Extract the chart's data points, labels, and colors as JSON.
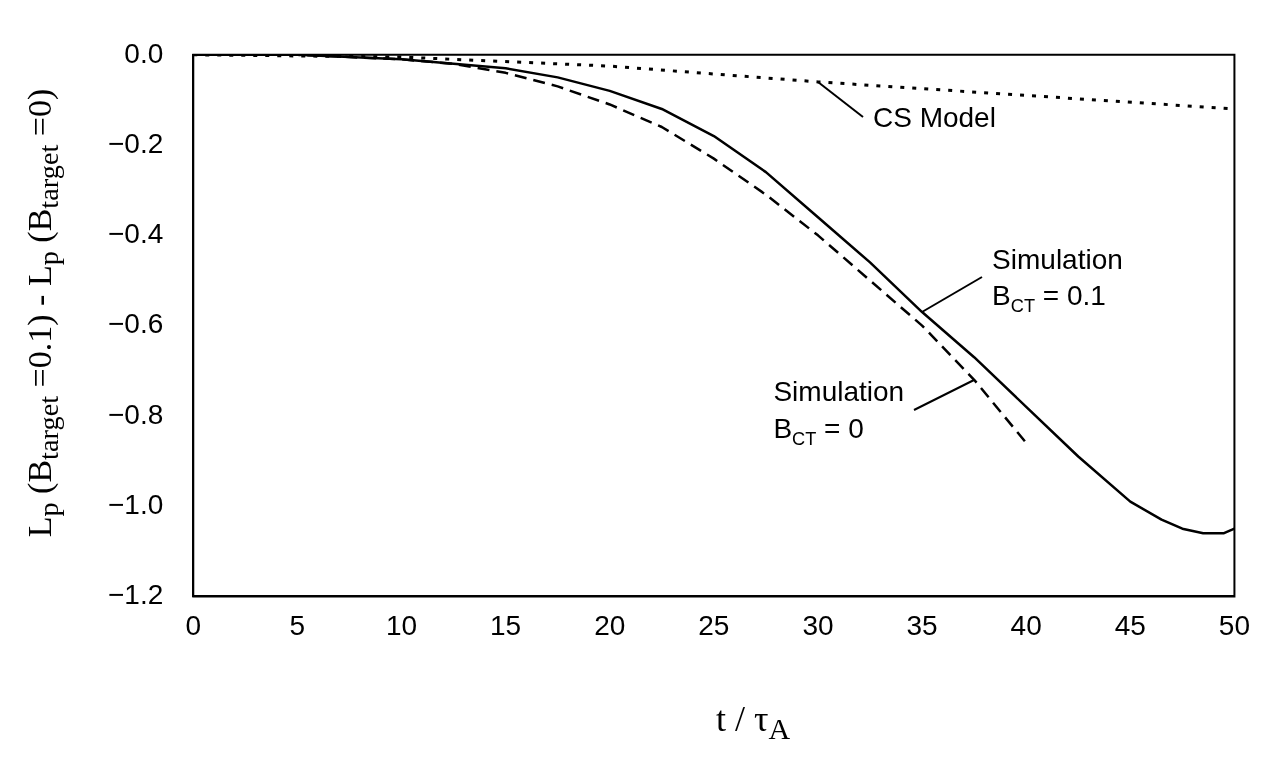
{
  "chart_data": {
    "type": "line",
    "xlabel": "t / τ$_{A}$",
    "ylabel": "L$_{p}$ (B$_{target}$ =0.1) - L$_{p}$ (B$_{target}$ =0)",
    "xlim": [
      0,
      50
    ],
    "ylim": [
      -1.2,
      0
    ],
    "xticks": [
      0,
      5,
      10,
      15,
      20,
      25,
      30,
      35,
      40,
      45,
      50
    ],
    "yticks": [
      {
        "value": 0,
        "label": "0.0"
      },
      {
        "value": -0.2,
        "label": "−0.2"
      },
      {
        "value": -0.4,
        "label": "−0.4"
      },
      {
        "value": -0.6,
        "label": "−0.6"
      },
      {
        "value": -0.8,
        "label": "−0.8"
      },
      {
        "value": -1.0,
        "label": "−1.0"
      },
      {
        "value": -1.2,
        "label": "−1.2"
      }
    ],
    "grid": false,
    "legend": false,
    "marker": "none",
    "series": [
      {
        "color": "#000000",
        "line_style": "solid",
        "x": [
          0,
          5,
          10,
          12.5,
          15,
          17.5,
          20,
          22.5,
          25,
          27.5,
          30,
          32.5,
          35,
          37.5,
          40,
          42.5,
          45,
          46.5,
          47.5,
          48.5,
          49.5,
          50
        ],
        "values": [
          0,
          0,
          -0.01,
          -0.02,
          -0.03,
          -0.05,
          -0.08,
          -0.12,
          -0.18,
          -0.26,
          -0.36,
          -0.46,
          -0.57,
          -0.67,
          -0.78,
          -0.89,
          -0.99,
          -1.03,
          -1.05,
          -1.06,
          -1.06,
          -1.05
        ]
      },
      {
        "color": "#000000",
        "line_style": "dashed",
        "x": [
          0,
          5,
          10,
          12.5,
          15,
          17.5,
          20,
          22.5,
          25,
          27.5,
          30,
          32.5,
          35,
          37.5,
          40
        ],
        "values": [
          0,
          0,
          -0.01,
          -0.02,
          -0.04,
          -0.07,
          -0.11,
          -0.16,
          -0.23,
          -0.31,
          -0.4,
          -0.5,
          -0.6,
          -0.72,
          -0.86
        ]
      },
      {
        "color": "#000000",
        "line_style": "dotted",
        "x": [
          0,
          10,
          20,
          30,
          40,
          50
        ],
        "values": [
          0,
          -0.005,
          -0.025,
          -0.06,
          -0.09,
          -0.12
        ]
      }
    ],
    "annotations": [
      {
        "text": "CS Model",
        "x": 30,
        "y": -0.06
      },
      {
        "text": "Simulation B$_{CT}$ = 0.1",
        "x": 35,
        "y": -0.57
      },
      {
        "text": "Simulation B$_{CT}$ = 0",
        "x": 37.5,
        "y": -0.72
      }
    ]
  }
}
